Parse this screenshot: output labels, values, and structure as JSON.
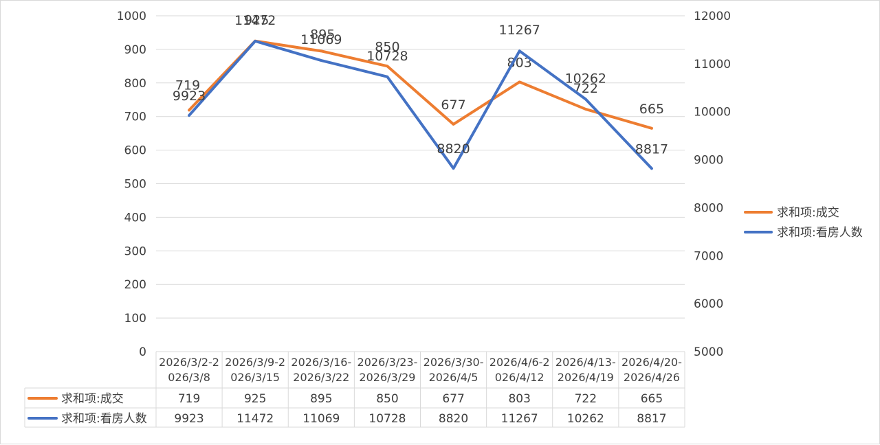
{
  "chart_data": {
    "type": "line",
    "categories": [
      [
        "2026/3/2-2",
        "026/3/8"
      ],
      [
        "2026/3/9-2",
        "026/3/15"
      ],
      [
        "2026/3/16-",
        "2026/3/22"
      ],
      [
        "2026/3/23-",
        "2026/3/29"
      ],
      [
        "2026/3/30-",
        "2026/4/5"
      ],
      [
        "2026/4/6-2",
        "026/4/12"
      ],
      [
        "2026/4/13-",
        "2026/4/19"
      ],
      [
        "2026/4/20-",
        "2026/4/26"
      ]
    ],
    "series": [
      {
        "name": "求和项:成交",
        "axis": "left",
        "color": "#ED7D31",
        "values": [
          719,
          925,
          895,
          850,
          677,
          803,
          722,
          665
        ]
      },
      {
        "name": "求和项:看房人数",
        "axis": "right",
        "color": "#4472C4",
        "values": [
          9923,
          11472,
          11069,
          10728,
          8820,
          11267,
          10262,
          8817
        ]
      }
    ],
    "y_left": {
      "min": 0,
      "max": 1000,
      "ticks": [
        0,
        100,
        200,
        300,
        400,
        500,
        600,
        700,
        800,
        900,
        1000
      ]
    },
    "y_right": {
      "min": 5000,
      "max": 12000,
      "ticks": [
        5000,
        6000,
        7000,
        8000,
        9000,
        10000,
        11000,
        12000
      ]
    },
    "grid": true,
    "legend_position": "right",
    "data_table": true
  }
}
